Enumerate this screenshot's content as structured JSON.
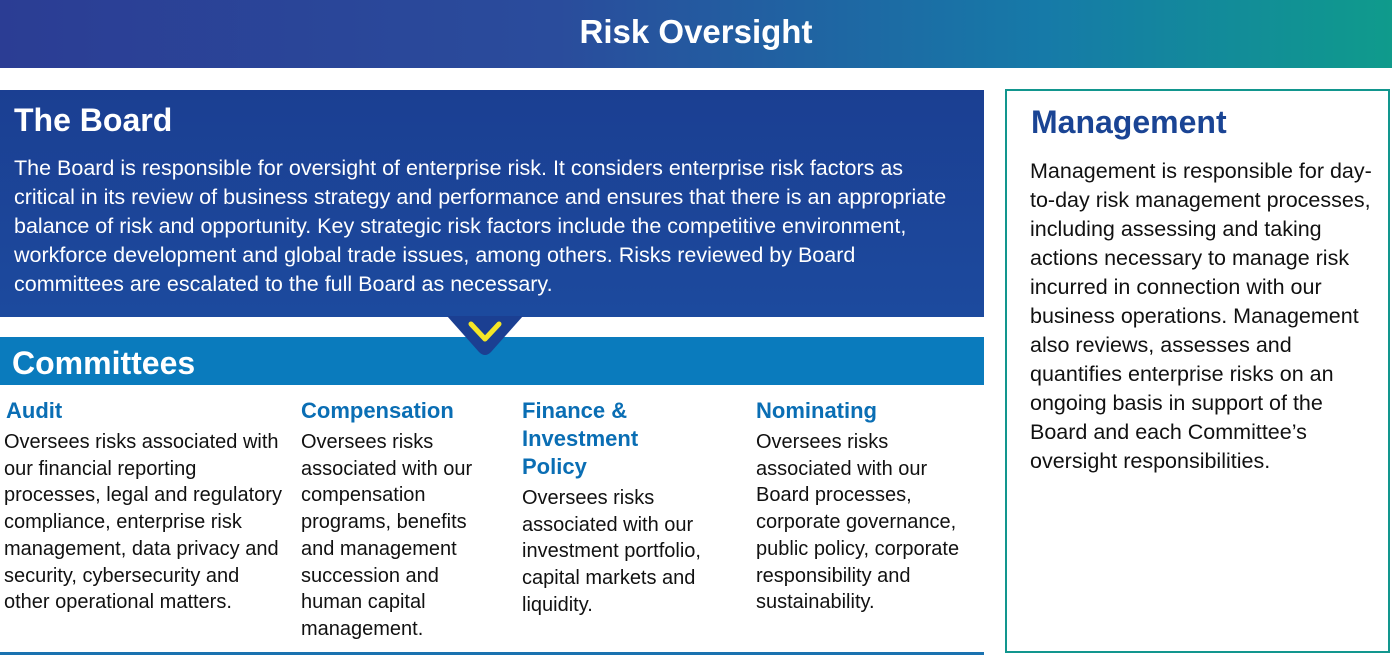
{
  "title": "Risk Oversight",
  "board": {
    "heading": "The Board",
    "text": "The Board is responsible for oversight of enterprise risk. It considers enterprise risk factors as critical in its review of business strategy and performance and ensures that there is an appropriate balance of risk and opportunity. Key strategic risk factors include the competitive environment, workforce development and global trade issues, among others. Risks reviewed by Board committees are escalated to the full Board as necessary."
  },
  "committees": {
    "heading": "Committees",
    "items": [
      {
        "name": "Audit",
        "text": "Oversees risks associated with our financial reporting processes, legal and regulatory compliance, enterprise risk management, data privacy and security, cybersecurity and other operational matters."
      },
      {
        "name": "Compensation",
        "text": "Oversees risks associated with our compensation programs, benefits and management succession and human capital management."
      },
      {
        "name": "Finance & Investment Policy",
        "text": "Oversees risks associated with our investment portfolio, capital markets and liquidity."
      },
      {
        "name": "Nominating",
        "text": "Oversees risks associated with our Board processes, corporate governance, public policy, corporate responsibility and sustainability."
      }
    ]
  },
  "management": {
    "heading": "Management",
    "text": "Management is responsible for day-to-day risk management processes, including assessing and taking actions necessary to manage risk incurred in connection with our business operations. Management also reviews, assesses and quantifies enterprise risks on an ongoing basis in support of the Board and each Committee’s oversight responsibilities."
  },
  "colors": {
    "banner_start": "#2b3d94",
    "banner_end": "#0f9b8c",
    "board": "#1b3f92",
    "committees": "#0a7bbd",
    "chevron": "#f5e626",
    "management_border": "#12968e"
  },
  "icons": {
    "arrow": "chevron-down-icon"
  }
}
